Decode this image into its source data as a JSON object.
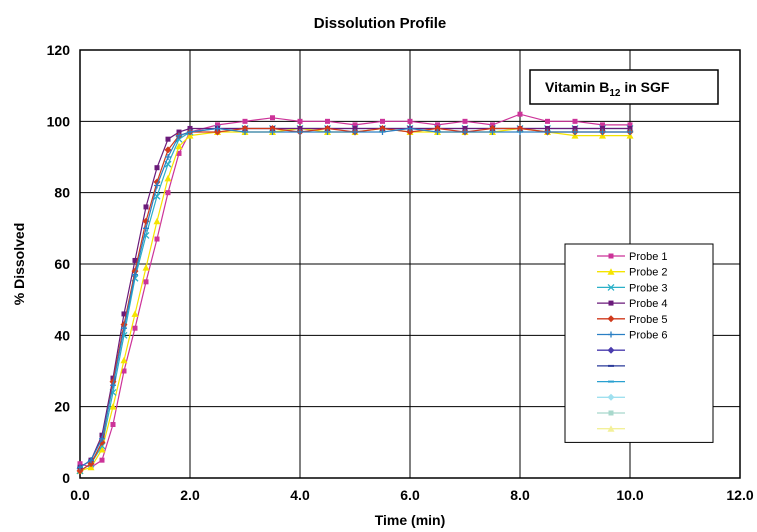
{
  "chart_data": {
    "type": "line",
    "title": "Dissolution Profile",
    "xlabel": "Time (min)",
    "ylabel": "% Dissolved",
    "xlim": [
      0,
      12
    ],
    "ylim": [
      0,
      120
    ],
    "x_ticks": [
      "0.0",
      "2.0",
      "4.0",
      "6.0",
      "8.0",
      "10.0",
      "12.0"
    ],
    "y_ticks": [
      "0",
      "20",
      "40",
      "60",
      "80",
      "100",
      "120"
    ],
    "x_tick_values": [
      0,
      2,
      4,
      6,
      8,
      10,
      12
    ],
    "y_tick_values": [
      0,
      20,
      40,
      60,
      80,
      100,
      120
    ],
    "grid": true,
    "legend_position": "right",
    "annotation": {
      "text_main": "Vitamin B",
      "text_sub": "12",
      "text_tail": " in SGF"
    },
    "x": [
      0.0,
      0.2,
      0.4,
      0.6,
      0.8,
      1.0,
      1.2,
      1.4,
      1.6,
      1.8,
      2.0,
      2.5,
      3.0,
      3.5,
      4.0,
      4.5,
      5.0,
      5.5,
      6.0,
      6.5,
      7.0,
      7.5,
      8.0,
      8.5,
      9.0,
      9.5,
      10.0
    ],
    "series": [
      {
        "name": "Probe 1",
        "color": "#cc3399",
        "marker": "square",
        "values": [
          4,
          3,
          5,
          15,
          30,
          42,
          55,
          67,
          80,
          91,
          97,
          99,
          100,
          101,
          100,
          100,
          99,
          100,
          100,
          99,
          100,
          99,
          102,
          100,
          100,
          99,
          99
        ]
      },
      {
        "name": "Probe 2",
        "color": "#f5e400",
        "marker": "triangle",
        "values": [
          2,
          3,
          8,
          20,
          33,
          46,
          59,
          72,
          84,
          93,
          96,
          97,
          97,
          97,
          98,
          97,
          97,
          98,
          97,
          97,
          97,
          97,
          98,
          97,
          96,
          96,
          96
        ]
      },
      {
        "name": "Probe 3",
        "color": "#2ab0c8",
        "marker": "x",
        "values": [
          2,
          4,
          9,
          24,
          40,
          56,
          68,
          79,
          88,
          95,
          97,
          98,
          98,
          98,
          98,
          98,
          98,
          98,
          98,
          98,
          98,
          98,
          98,
          98,
          98,
          98,
          98
        ]
      },
      {
        "name": "Probe 4",
        "color": "#6a1a7a",
        "marker": "square",
        "values": [
          3,
          5,
          12,
          28,
          46,
          61,
          76,
          87,
          95,
          97,
          98,
          98,
          98,
          98,
          98,
          98,
          98,
          98,
          98,
          98,
          98,
          98,
          98,
          98,
          98,
          98,
          98
        ]
      },
      {
        "name": "Probe 5",
        "color": "#d03a1c",
        "marker": "diamond",
        "values": [
          2,
          4,
          10,
          27,
          43,
          58,
          72,
          83,
          92,
          96,
          97,
          97,
          98,
          98,
          97,
          98,
          97,
          98,
          97,
          98,
          97,
          98,
          98,
          97,
          97,
          97,
          97
        ]
      },
      {
        "name": "Probe 6",
        "color": "#2a7fc4",
        "marker": "plus",
        "values": [
          3,
          5,
          11,
          26,
          42,
          57,
          70,
          82,
          90,
          96,
          97,
          98,
          97,
          97,
          97,
          97,
          97,
          97,
          98,
          97,
          97,
          97,
          97,
          97,
          97,
          97,
          97
        ]
      }
    ],
    "legend_blank_entries": [
      {
        "color": "#4a3cae",
        "marker": "diamond"
      },
      {
        "color": "#2a3a9a",
        "marker": "dash"
      },
      {
        "color": "#29a0d0",
        "marker": "dash"
      },
      {
        "color": "#9fe0ef",
        "marker": "diamond"
      },
      {
        "color": "#a8d8cc",
        "marker": "square"
      },
      {
        "color": "#f3f099",
        "marker": "triangle"
      }
    ]
  }
}
